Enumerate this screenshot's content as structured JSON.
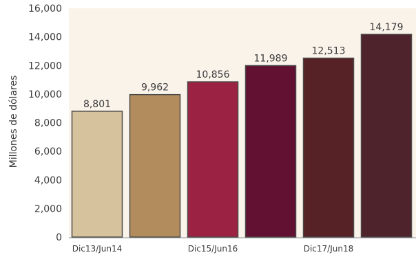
{
  "chart_data": {
    "type": "bar",
    "categories": [
      "Dic13/Jun14",
      "",
      "Dic15/Jun16",
      "",
      "Dic17/Jun18",
      ""
    ],
    "values": [
      8801,
      9962,
      10856,
      11989,
      12513,
      14179
    ],
    "value_labels": [
      "8,801",
      "9,962",
      "10,856",
      "11,989",
      "12,513",
      "14,179"
    ],
    "bar_colors": [
      "#d6c29c",
      "#b38c5e",
      "#9b2243",
      "#621132",
      "#562226",
      "#4e232c"
    ],
    "ylabel": "Millones de dólares",
    "ylim": [
      0,
      16000
    ],
    "yticks": [
      0,
      2000,
      4000,
      6000,
      8000,
      10000,
      12000,
      14000,
      16000
    ],
    "ytick_labels": [
      "0",
      "2,000",
      "4,000",
      "6,000",
      "8,000",
      "10,000",
      "12,000",
      "14,000",
      "16,000"
    ],
    "plot_background": "#faf3ea",
    "bar_edge_color": "#4a4a4a",
    "grid": false,
    "legend": "none"
  }
}
